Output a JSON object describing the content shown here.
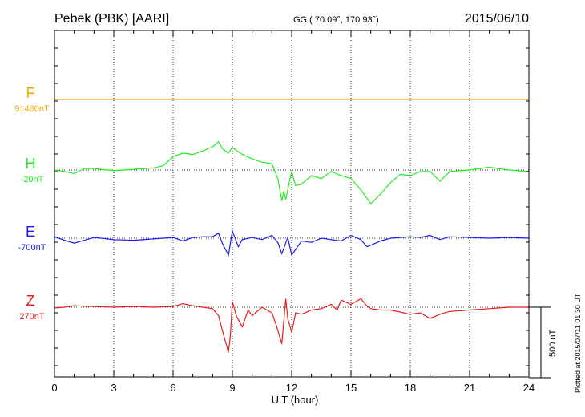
{
  "header": {
    "station": "Pebek (PBK)  [AARI]",
    "coords": "GG ( 70.09°, 170.93°)",
    "date": "2015/06/10"
  },
  "footer": {
    "plotted": "Plotted at 2015/07/11 01:30 UT",
    "scale": "500 nT"
  },
  "chart_data": {
    "type": "line",
    "title": "Pebek (PBK)  [AARI]",
    "xlabel": "U T (hour)",
    "ylabel": "",
    "xlim": [
      0,
      24
    ],
    "x_ticks": [
      "0",
      "3",
      "6",
      "9",
      "12",
      "15",
      "18",
      "21",
      "24"
    ],
    "grid": true,
    "scale_bar_nT": 500,
    "series": [
      {
        "name": "F",
        "baseline": "91460nT",
        "color": "#f0a800",
        "x": [
          0,
          2,
          4,
          6,
          8,
          10,
          12,
          14,
          16,
          18,
          20,
          22,
          24
        ],
        "y": [
          0,
          0,
          0,
          0,
          0,
          0,
          0,
          0,
          0,
          0,
          0,
          0,
          0
        ]
      },
      {
        "name": "H",
        "baseline": "-20nT",
        "color": "#22ee22",
        "x": [
          0,
          0.5,
          1,
          1.5,
          2,
          3,
          4,
          5,
          5.5,
          6,
          6.5,
          7,
          7.5,
          8,
          8.3,
          8.5,
          8.8,
          9,
          9.5,
          10,
          10.5,
          11,
          11.3,
          11.5,
          11.6,
          11.7,
          11.8,
          12,
          12.2,
          12.5,
          13,
          13.5,
          14,
          14.5,
          15,
          15.5,
          15.8,
          16,
          16.5,
          17,
          17.5,
          18,
          18.5,
          19,
          19.5,
          20,
          21,
          22,
          23,
          24
        ],
        "y": [
          0,
          -10,
          -25,
          10,
          10,
          -5,
          5,
          15,
          30,
          95,
          120,
          110,
          135,
          165,
          200,
          150,
          120,
          160,
          110,
          80,
          55,
          45,
          -60,
          -220,
          -150,
          -210,
          -140,
          -10,
          -110,
          -100,
          -40,
          -60,
          -10,
          -40,
          -60,
          -140,
          -200,
          -240,
          -170,
          -90,
          -30,
          -40,
          -10,
          -10,
          -80,
          -10,
          0,
          20,
          0,
          -10
        ]
      },
      {
        "name": "E",
        "baseline": "-700nT",
        "color": "#1a1aee",
        "x": [
          0,
          0.5,
          1,
          2,
          3,
          4,
          5,
          6,
          6.5,
          7,
          7.5,
          8,
          8.3,
          8.5,
          8.8,
          9,
          9.3,
          9.5,
          10,
          10.5,
          11,
          11.3,
          11.5,
          11.8,
          12,
          12.5,
          13,
          13.5,
          14,
          14.5,
          15,
          15.5,
          15.8,
          16,
          16.5,
          17,
          17.5,
          18,
          18.5,
          19,
          19.5,
          20,
          21,
          22,
          23,
          24
        ],
        "y": [
          10,
          -15,
          -35,
          5,
          -10,
          -15,
          -5,
          5,
          -20,
          5,
          10,
          10,
          35,
          -40,
          -120,
          50,
          -60,
          -10,
          5,
          -10,
          20,
          -30,
          -110,
          5,
          -120,
          -20,
          -30,
          0,
          -10,
          -20,
          20,
          -10,
          -60,
          -50,
          -20,
          0,
          5,
          10,
          5,
          20,
          -10,
          10,
          5,
          0,
          5,
          0
        ]
      },
      {
        "name": "Z",
        "baseline": "270nT",
        "color": "#e81a1a",
        "x": [
          0,
          0.5,
          1,
          2,
          3,
          4,
          5,
          6,
          6.5,
          7,
          7.5,
          8,
          8.3,
          8.5,
          8.8,
          8.9,
          9,
          9.2,
          9.5,
          9.8,
          10,
          10.5,
          11,
          11.2,
          11.5,
          11.7,
          11.8,
          12,
          12.2,
          12.5,
          13,
          13.5,
          14,
          14.3,
          14.5,
          15,
          15.5,
          15.8,
          16,
          16.5,
          17,
          18,
          18.5,
          19,
          19.5,
          20,
          21,
          22,
          23,
          24
        ],
        "y": [
          -5,
          0,
          10,
          5,
          0,
          5,
          0,
          5,
          25,
          10,
          0,
          -10,
          -60,
          -170,
          -320,
          -200,
          40,
          -60,
          -140,
          -20,
          -60,
          0,
          -40,
          -120,
          -260,
          60,
          -80,
          -180,
          -40,
          -50,
          -20,
          -10,
          20,
          -20,
          50,
          20,
          60,
          10,
          -10,
          -20,
          -20,
          -50,
          -40,
          -80,
          -50,
          -30,
          -20,
          -10,
          0,
          0
        ]
      }
    ]
  }
}
